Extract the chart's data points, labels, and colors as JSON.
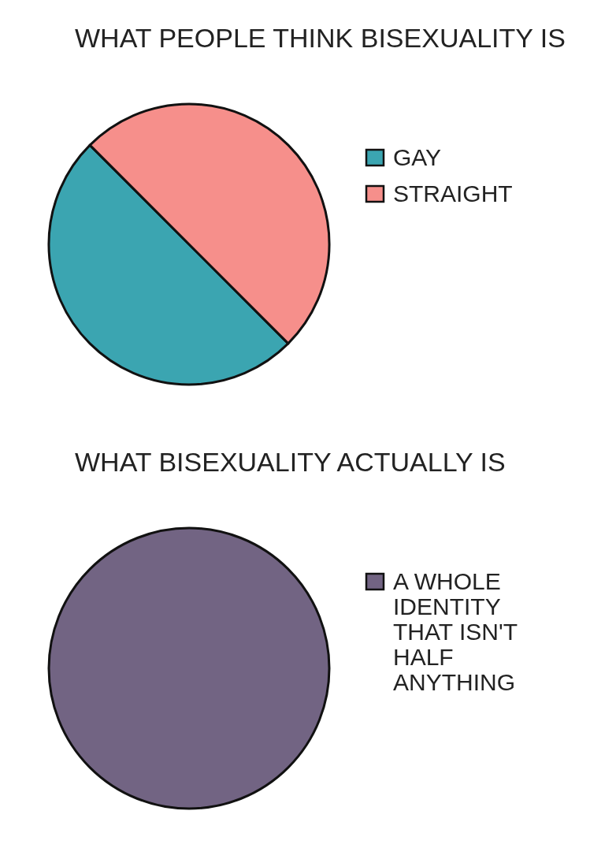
{
  "chart_data": [
    {
      "type": "pie",
      "title": "WHAT PEOPLE THINK BISEXUALITY IS",
      "categories": [
        "GAY",
        "STRAIGHT"
      ],
      "values": [
        50,
        50
      ],
      "colors": [
        "#3ba5b1",
        "#f68f8b"
      ],
      "legend": "right"
    },
    {
      "type": "pie",
      "title": "WHAT BISEXUALITY ACTUALLY IS",
      "categories": [
        "A WHOLE IDENTITY THAT ISN'T HALF ANYTHING"
      ],
      "values": [
        100
      ],
      "colors": [
        "#726483"
      ],
      "legend": "right"
    }
  ]
}
